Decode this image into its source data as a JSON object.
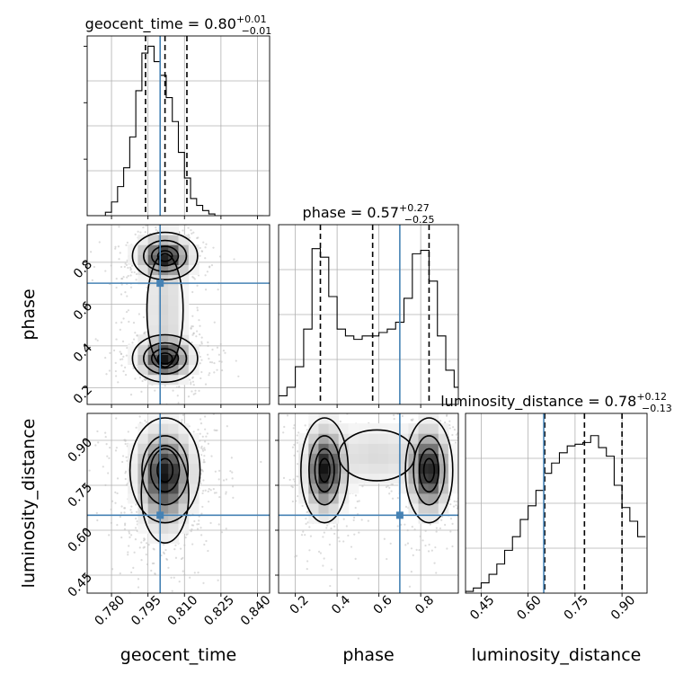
{
  "chart_data": {
    "type": "corner",
    "true_values": {
      "geocent_time": 0.8,
      "phase": 0.7,
      "luminosity_distance": 0.65
    },
    "truth_color": "#4682b4",
    "panels": [
      {
        "id": "geocent_time_hist",
        "type": "histogram",
        "param": "geocent_time",
        "title": {
          "main": "geocent_time = 0.80",
          "sup": "+0.01",
          "sub": "−0.01"
        },
        "xlim": [
          0.77,
          0.845
        ],
        "bins_x": [
          0.77,
          0.7725,
          0.775,
          0.7775,
          0.78,
          0.7825,
          0.785,
          0.7875,
          0.79,
          0.7925,
          0.795,
          0.7975,
          0.8,
          0.8025,
          0.805,
          0.8075,
          0.81,
          0.8125,
          0.815,
          0.8175,
          0.82,
          0.8225,
          0.825,
          0.8275,
          0.83,
          0.8325,
          0.835,
          0.8375,
          0.84,
          0.8425
        ],
        "counts": [
          0,
          0,
          0,
          0.02,
          0.08,
          0.17,
          0.28,
          0.46,
          0.73,
          0.95,
          0.99,
          0.9,
          0.82,
          0.69,
          0.55,
          0.37,
          0.22,
          0.1,
          0.06,
          0.03,
          0.01,
          0,
          0,
          0,
          0,
          0,
          0,
          0,
          0
        ],
        "quantiles": [
          0.794,
          0.802,
          0.811
        ]
      },
      {
        "id": "phase_hist",
        "type": "histogram",
        "param": "phase",
        "title": {
          "main": "phase = 0.57",
          "sup": "+0.27",
          "sub": "−0.25"
        },
        "xlim": [
          0.12,
          0.98
        ],
        "bins_x": [
          0.12,
          0.16,
          0.2,
          0.24,
          0.28,
          0.32,
          0.36,
          0.4,
          0.44,
          0.48,
          0.52,
          0.56,
          0.6,
          0.64,
          0.68,
          0.72,
          0.76,
          0.8,
          0.84,
          0.88,
          0.92,
          0.96,
          0.98
        ],
        "counts": [
          0.05,
          0.1,
          0.22,
          0.44,
          0.91,
          0.86,
          0.63,
          0.44,
          0.4,
          0.38,
          0.4,
          0.4,
          0.42,
          0.44,
          0.48,
          0.62,
          0.88,
          0.9,
          0.72,
          0.4,
          0.2,
          0.1
        ],
        "quantiles": [
          0.32,
          0.57,
          0.84
        ]
      },
      {
        "id": "luminosity_distance_hist",
        "type": "histogram",
        "param": "luminosity_distance",
        "title": {
          "main": "luminosity_distance = 0.78",
          "sup": "+0.12",
          "sub": "−0.13"
        },
        "xlim": [
          0.4,
          0.98
        ],
        "bins_x": [
          0.4,
          0.425,
          0.45,
          0.475,
          0.5,
          0.525,
          0.55,
          0.575,
          0.6,
          0.625,
          0.65,
          0.675,
          0.7,
          0.725,
          0.75,
          0.775,
          0.8,
          0.825,
          0.85,
          0.875,
          0.9,
          0.925,
          0.95,
          0.975
        ],
        "counts": [
          0.01,
          0.03,
          0.06,
          0.11,
          0.17,
          0.25,
          0.33,
          0.43,
          0.51,
          0.6,
          0.7,
          0.76,
          0.82,
          0.86,
          0.87,
          0.88,
          0.92,
          0.85,
          0.8,
          0.63,
          0.5,
          0.42,
          0.33
        ],
        "quantiles": [
          0.653,
          0.78,
          0.9
        ]
      },
      {
        "id": "phase_vs_geocent",
        "type": "density2d",
        "x_param": "geocent_time",
        "y_param": "phase",
        "xlim": [
          0.77,
          0.845
        ],
        "ylim": [
          0.12,
          0.98
        ],
        "modes": [
          {
            "x": 0.802,
            "y": 0.83,
            "sx": 0.0065,
            "sy": 0.055,
            "w": 1.0
          },
          {
            "x": 0.802,
            "y": 0.34,
            "sx": 0.0065,
            "sy": 0.055,
            "w": 1.0
          },
          {
            "x": 0.802,
            "y": 0.57,
            "sx": 0.0055,
            "sy": 0.2,
            "w": 0.3
          }
        ]
      },
      {
        "id": "distance_vs_geocent",
        "type": "density2d",
        "x_param": "geocent_time",
        "y_param": "luminosity_distance",
        "xlim": [
          0.77,
          0.845
        ],
        "ylim": [
          0.39,
          0.99
        ],
        "modes": [
          {
            "x": 0.802,
            "y": 0.8,
            "sx": 0.007,
            "sy": 0.085,
            "w": 1.0
          },
          {
            "x": 0.802,
            "y": 0.72,
            "sx": 0.006,
            "sy": 0.1,
            "w": 0.45
          }
        ]
      },
      {
        "id": "distance_vs_phase",
        "type": "density2d",
        "x_param": "phase",
        "y_param": "luminosity_distance",
        "xlim": [
          0.12,
          0.98
        ],
        "ylim": [
          0.39,
          0.99
        ],
        "modes": [
          {
            "x": 0.34,
            "y": 0.8,
            "sx": 0.055,
            "sy": 0.085,
            "w": 1.0
          },
          {
            "x": 0.84,
            "y": 0.8,
            "sx": 0.055,
            "sy": 0.085,
            "w": 1.0
          },
          {
            "x": 0.59,
            "y": 0.85,
            "sx": 0.15,
            "sy": 0.07,
            "w": 0.25
          }
        ]
      }
    ],
    "axis_labels": {
      "x": [
        "geocent_time",
        "phase",
        "luminosity_distance"
      ],
      "y": [
        "phase",
        "luminosity_distance"
      ]
    },
    "x_ticks": {
      "geocent_time": [
        "0.780",
        "0.795",
        "0.810",
        "0.825",
        "0.840"
      ],
      "phase": [
        "0.2",
        "0.4",
        "0.6",
        "0.8"
      ],
      "luminosity_distance": [
        "0.45",
        "0.60",
        "0.75",
        "0.90"
      ]
    },
    "y_ticks": {
      "phase": [
        "0.2",
        "0.4",
        "0.6",
        "0.8"
      ],
      "luminosity_distance": [
        "0.45",
        "0.60",
        "0.75",
        "0.90"
      ]
    },
    "contour_levels": [
      0.12,
      0.4,
      0.7,
      0.9
    ],
    "grid": true
  }
}
